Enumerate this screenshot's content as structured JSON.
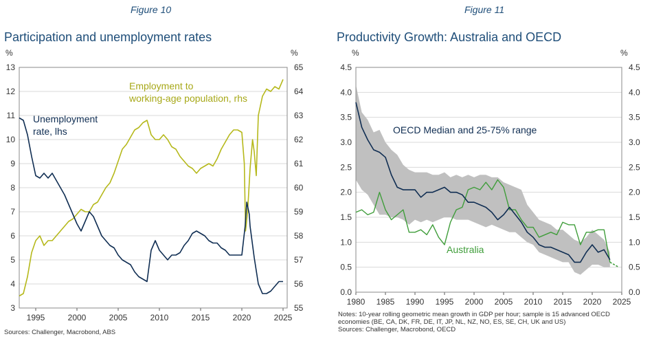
{
  "colors": {
    "navy": "#0f2d52",
    "olive": "#b5b81a",
    "green": "#3f9d3a",
    "band": "#c0c0c0",
    "grid": "#d9d9d9",
    "title": "#1f4e79"
  },
  "left_panel": {
    "figure_label": "Figure 10",
    "title": "Participation and unemployment rates",
    "lhs_unit": "%",
    "rhs_unit": "%",
    "sources": "Sources: Challenger, Macrobond, ABS"
  },
  "right_panel": {
    "figure_label": "Figure 11",
    "title": "Productivity Growth: Australia and OECD",
    "lhs_unit": "%",
    "rhs_unit": "%",
    "notes_line1": "Notes: 10-year rolling geometric mean growth in GDP per hour; sample is 15 advanced OECD",
    "notes_line2": "economies (BE, CA, DK, FR, DE, IT, JP, NL, NZ, NO, ES, SE, CH, UK and US)",
    "sources": "Sources: Challenger, Macrobond, OECD"
  },
  "chart_data": [
    {
      "type": "line",
      "title": "Participation and unemployment rates",
      "x_range": [
        1993,
        2025.5
      ],
      "x_ticks": [
        1995,
        2000,
        2005,
        2010,
        2015,
        2020,
        2025
      ],
      "y_left": {
        "range": [
          3,
          13
        ],
        "ticks": [
          3,
          4,
          5,
          6,
          7,
          8,
          9,
          10,
          11,
          12,
          13
        ]
      },
      "y_right": {
        "range": [
          55,
          65
        ],
        "ticks": [
          55,
          56,
          57,
          58,
          59,
          60,
          61,
          62,
          63,
          64,
          65
        ]
      },
      "series": [
        {
          "name": "Unemployment rate, lhs",
          "label_line1": "Unemployment",
          "label_line2": "rate, lhs",
          "axis": "left",
          "points": [
            [
              1993,
              10.9
            ],
            [
              1993.5,
              10.8
            ],
            [
              1994,
              10.2
            ],
            [
              1994.5,
              9.3
            ],
            [
              1995,
              8.5
            ],
            [
              1995.5,
              8.4
            ],
            [
              1996,
              8.6
            ],
            [
              1996.5,
              8.4
            ],
            [
              1997,
              8.6
            ],
            [
              1997.5,
              8.3
            ],
            [
              1998,
              8.0
            ],
            [
              1998.5,
              7.7
            ],
            [
              1999,
              7.3
            ],
            [
              1999.5,
              6.9
            ],
            [
              2000,
              6.5
            ],
            [
              2000.5,
              6.2
            ],
            [
              2001,
              6.6
            ],
            [
              2001.5,
              7.0
            ],
            [
              2002,
              6.8
            ],
            [
              2002.5,
              6.4
            ],
            [
              2003,
              6.0
            ],
            [
              2003.5,
              5.8
            ],
            [
              2004,
              5.6
            ],
            [
              2004.5,
              5.5
            ],
            [
              2005,
              5.2
            ],
            [
              2005.5,
              5.0
            ],
            [
              2006,
              4.9
            ],
            [
              2006.5,
              4.8
            ],
            [
              2007,
              4.5
            ],
            [
              2007.5,
              4.3
            ],
            [
              2008,
              4.2
            ],
            [
              2008.5,
              4.1
            ],
            [
              2009,
              5.4
            ],
            [
              2009.5,
              5.8
            ],
            [
              2010,
              5.4
            ],
            [
              2010.5,
              5.2
            ],
            [
              2011,
              5.0
            ],
            [
              2011.5,
              5.2
            ],
            [
              2012,
              5.2
            ],
            [
              2012.5,
              5.3
            ],
            [
              2013,
              5.6
            ],
            [
              2013.5,
              5.8
            ],
            [
              2014,
              6.1
            ],
            [
              2014.5,
              6.2
            ],
            [
              2015,
              6.1
            ],
            [
              2015.5,
              6.0
            ],
            [
              2016,
              5.8
            ],
            [
              2016.5,
              5.7
            ],
            [
              2017,
              5.7
            ],
            [
              2017.5,
              5.5
            ],
            [
              2018,
              5.4
            ],
            [
              2018.5,
              5.2
            ],
            [
              2019,
              5.2
            ],
            [
              2019.5,
              5.2
            ],
            [
              2020,
              5.2
            ],
            [
              2020.4,
              6.4
            ],
            [
              2020.6,
              7.4
            ],
            [
              2020.9,
              6.9
            ],
            [
              2021,
              6.4
            ],
            [
              2021.5,
              5.1
            ],
            [
              2022,
              4.0
            ],
            [
              2022.5,
              3.6
            ],
            [
              2023,
              3.6
            ],
            [
              2023.5,
              3.7
            ],
            [
              2024,
              3.9
            ],
            [
              2024.5,
              4.1
            ],
            [
              2025,
              4.1
            ]
          ]
        },
        {
          "name": "Employment to working-age population, rhs",
          "label_line1": "Employment to",
          "label_line2": "working-age population, rhs",
          "axis": "right",
          "points": [
            [
              1993,
              55.5
            ],
            [
              1993.5,
              55.6
            ],
            [
              1994,
              56.3
            ],
            [
              1994.5,
              57.3
            ],
            [
              1995,
              57.8
            ],
            [
              1995.5,
              58.0
            ],
            [
              1996,
              57.6
            ],
            [
              1996.5,
              57.8
            ],
            [
              1997,
              57.8
            ],
            [
              1997.5,
              58.0
            ],
            [
              1998,
              58.2
            ],
            [
              1998.5,
              58.4
            ],
            [
              1999,
              58.6
            ],
            [
              1999.5,
              58.7
            ],
            [
              2000,
              58.9
            ],
            [
              2000.5,
              59.1
            ],
            [
              2001,
              59.0
            ],
            [
              2001.5,
              59.0
            ],
            [
              2002,
              59.3
            ],
            [
              2002.5,
              59.4
            ],
            [
              2003,
              59.7
            ],
            [
              2003.5,
              60.0
            ],
            [
              2004,
              60.2
            ],
            [
              2004.5,
              60.6
            ],
            [
              2005,
              61.1
            ],
            [
              2005.5,
              61.6
            ],
            [
              2006,
              61.8
            ],
            [
              2006.5,
              62.1
            ],
            [
              2007,
              62.4
            ],
            [
              2007.5,
              62.5
            ],
            [
              2008,
              62.7
            ],
            [
              2008.5,
              62.8
            ],
            [
              2009,
              62.2
            ],
            [
              2009.5,
              62.0
            ],
            [
              2010,
              62.0
            ],
            [
              2010.5,
              62.2
            ],
            [
              2011,
              62.0
            ],
            [
              2011.5,
              61.7
            ],
            [
              2012,
              61.6
            ],
            [
              2012.5,
              61.3
            ],
            [
              2013,
              61.1
            ],
            [
              2013.5,
              60.9
            ],
            [
              2014,
              60.8
            ],
            [
              2014.5,
              60.6
            ],
            [
              2015,
              60.8
            ],
            [
              2015.5,
              60.9
            ],
            [
              2016,
              61.0
            ],
            [
              2016.5,
              60.9
            ],
            [
              2017,
              61.2
            ],
            [
              2017.5,
              61.6
            ],
            [
              2018,
              61.9
            ],
            [
              2018.5,
              62.2
            ],
            [
              2019,
              62.4
            ],
            [
              2019.5,
              62.4
            ],
            [
              2020,
              62.3
            ],
            [
              2020.3,
              61.0
            ],
            [
              2020.45,
              58.2
            ],
            [
              2020.7,
              59.0
            ],
            [
              2021,
              60.8
            ],
            [
              2021.3,
              62.0
            ],
            [
              2021.5,
              61.5
            ],
            [
              2021.75,
              60.5
            ],
            [
              2022,
              63.0
            ],
            [
              2022.5,
              63.8
            ],
            [
              2023,
              64.1
            ],
            [
              2023.5,
              64.0
            ],
            [
              2024,
              64.2
            ],
            [
              2024.5,
              64.1
            ],
            [
              2025,
              64.5
            ]
          ]
        }
      ]
    },
    {
      "type": "line",
      "title": "Productivity Growth: Australia and OECD",
      "x_range": [
        1980,
        2025
      ],
      "x_ticks": [
        1980,
        1985,
        1990,
        1995,
        2000,
        2005,
        2010,
        2015,
        2020,
        2025
      ],
      "y_range": [
        0,
        4.5
      ],
      "y_ticks": [
        0.0,
        0.5,
        1.0,
        1.5,
        2.0,
        2.5,
        3.0,
        3.5,
        4.0,
        4.5
      ],
      "band_label": "OECD Median and 25-75% range",
      "band": {
        "x": [
          1980,
          1981,
          1982,
          1983,
          1984,
          1985,
          1986,
          1987,
          1988,
          1989,
          1990,
          1991,
          1992,
          1993,
          1994,
          1995,
          1996,
          1997,
          1998,
          1999,
          2000,
          2001,
          2002,
          2003,
          2004,
          2005,
          2006,
          2007,
          2008,
          2009,
          2010,
          2011,
          2012,
          2013,
          2014,
          2015,
          2016,
          2017,
          2018,
          2019,
          2020,
          2021,
          2022,
          2023
        ],
        "lower": [
          2.25,
          2.05,
          1.95,
          1.75,
          1.55,
          1.55,
          1.5,
          1.5,
          1.45,
          1.35,
          1.45,
          1.4,
          1.45,
          1.4,
          1.45,
          1.5,
          1.5,
          1.45,
          1.45,
          1.45,
          1.4,
          1.35,
          1.3,
          1.35,
          1.3,
          1.25,
          1.2,
          1.2,
          1.1,
          1.0,
          0.95,
          0.8,
          0.75,
          0.7,
          0.65,
          0.6,
          0.6,
          0.4,
          0.35,
          0.45,
          0.55,
          0.55,
          0.5,
          0.5
        ],
        "upper": [
          4.15,
          3.6,
          3.45,
          3.2,
          3.25,
          3.0,
          2.85,
          2.75,
          2.55,
          2.45,
          2.4,
          2.4,
          2.4,
          2.35,
          2.35,
          2.4,
          2.3,
          2.35,
          2.3,
          2.35,
          2.3,
          2.35,
          2.35,
          2.3,
          2.3,
          2.2,
          2.15,
          2.1,
          2.05,
          1.75,
          1.6,
          1.45,
          1.4,
          1.35,
          1.25,
          1.25,
          1.15,
          1.05,
          1.0,
          1.1,
          1.25,
          1.15,
          1.05,
          0.8
        ]
      },
      "series": [
        {
          "name": "OECD Median",
          "x": [
            1980,
            1981,
            1982,
            1983,
            1984,
            1985,
            1986,
            1987,
            1988,
            1989,
            1990,
            1991,
            1992,
            1993,
            1994,
            1995,
            1996,
            1997,
            1998,
            1999,
            2000,
            2001,
            2002,
            2003,
            2004,
            2005,
            2006,
            2007,
            2008,
            2009,
            2010,
            2011,
            2012,
            2013,
            2014,
            2015,
            2016,
            2017,
            2018,
            2019,
            2020,
            2021,
            2022,
            2023
          ],
          "y": [
            3.8,
            3.3,
            3.05,
            2.85,
            2.8,
            2.7,
            2.35,
            2.1,
            2.05,
            2.05,
            2.05,
            1.9,
            2.0,
            2.0,
            2.05,
            2.1,
            2.0,
            2.0,
            1.95,
            1.8,
            1.8,
            1.75,
            1.7,
            1.6,
            1.45,
            1.55,
            1.7,
            1.55,
            1.4,
            1.2,
            1.1,
            0.95,
            0.9,
            0.9,
            0.85,
            0.8,
            0.75,
            0.6,
            0.6,
            0.8,
            0.95,
            0.8,
            0.85,
            0.65
          ]
        },
        {
          "name": "Australia",
          "x": [
            1980,
            1981,
            1982,
            1983,
            1984,
            1985,
            1986,
            1987,
            1988,
            1989,
            1990,
            1991,
            1992,
            1993,
            1994,
            1995,
            1996,
            1997,
            1998,
            1999,
            2000,
            2001,
            2002,
            2003,
            2004,
            2005,
            2006,
            2007,
            2008,
            2009,
            2010,
            2011,
            2012,
            2013,
            2014,
            2015,
            2016,
            2017,
            2018,
            2019,
            2020,
            2021,
            2022,
            2023
          ],
          "y": [
            1.6,
            1.65,
            1.55,
            1.6,
            2.0,
            1.65,
            1.45,
            1.55,
            1.65,
            1.2,
            1.2,
            1.25,
            1.15,
            1.35,
            1.1,
            0.95,
            1.4,
            1.65,
            1.7,
            2.05,
            2.1,
            2.05,
            2.2,
            2.05,
            2.25,
            2.1,
            1.65,
            1.65,
            1.45,
            1.3,
            1.3,
            1.1,
            1.15,
            1.2,
            1.15,
            1.4,
            1.35,
            1.35,
            0.95,
            1.2,
            1.2,
            1.25,
            1.25,
            0.6
          ]
        },
        {
          "name": "Australia (dashed tail)",
          "style": "dashed",
          "x": [
            2023,
            2024.5
          ],
          "y": [
            0.6,
            0.5
          ]
        }
      ],
      "australia_label": "Australia"
    }
  ]
}
